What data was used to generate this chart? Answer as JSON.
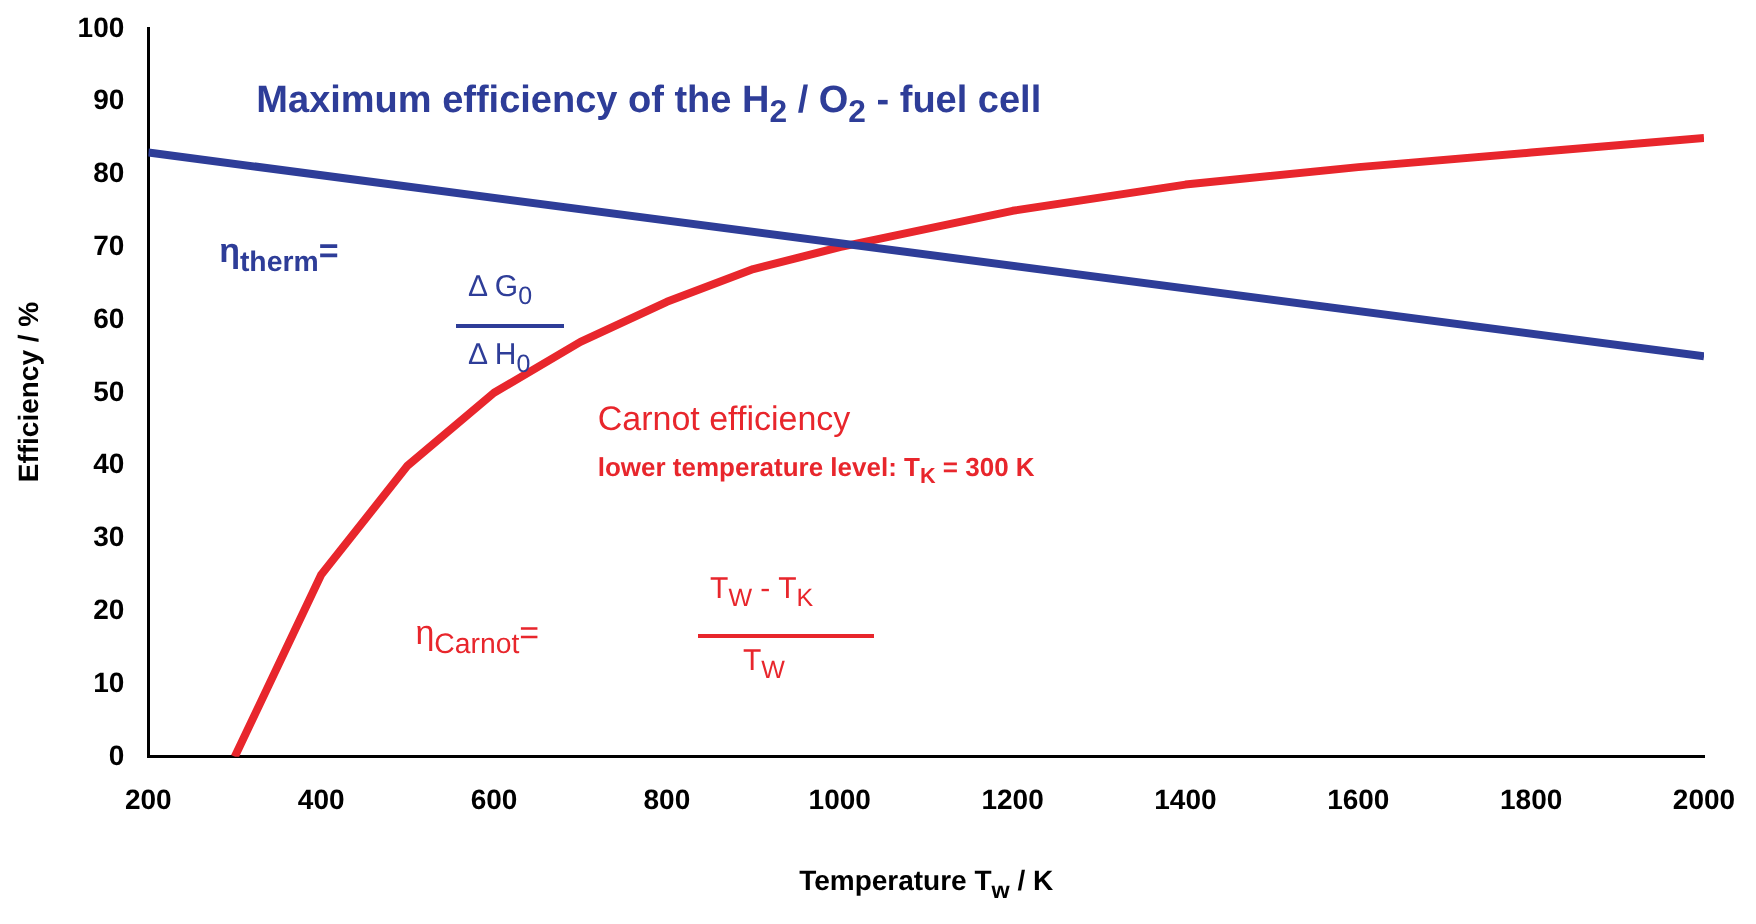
{
  "chart_data": {
    "type": "line",
    "xlabel": "Temperature T$_{w}$ / K",
    "ylabel": "Efficiency / %",
    "xlim": [
      200,
      2000
    ],
    "xticks": [
      200,
      400,
      600,
      800,
      1000,
      1200,
      1400,
      1600,
      1800,
      2000
    ],
    "ylim": [
      0,
      100
    ],
    "yticks": [
      0,
      10,
      20,
      30,
      40,
      50,
      60,
      70,
      80,
      90,
      100
    ],
    "grid": false,
    "legend": false,
    "marker": "none",
    "line_style": "solid",
    "series": [
      {
        "name": "Maximum efficiency of the H$_{2}$ / O$_{2}$ - fuel cell",
        "color": "#2e3d98",
        "x": [
          200,
          2000
        ],
        "values": [
          83,
          55
        ]
      },
      {
        "name": "Carnot efficiency",
        "color": "#e8262c",
        "x": [
          300,
          400,
          500,
          600,
          700,
          800,
          900,
          1000,
          1200,
          1400,
          1600,
          1800,
          2000
        ],
        "values": [
          0,
          25,
          40,
          50,
          57,
          62.5,
          67,
          70,
          75,
          78.6,
          81,
          83,
          85
        ]
      }
    ],
    "annotations": [
      "lower temperature level: T$_{K}$ = 300 K",
      "η$_{therm}$=",
      "Δ G$_{0}$",
      "Δ H$_{0}$",
      "η$_{Carnot}$=",
      "T$_{W}$ - T$_{K}$",
      "T$_{W}$"
    ]
  }
}
